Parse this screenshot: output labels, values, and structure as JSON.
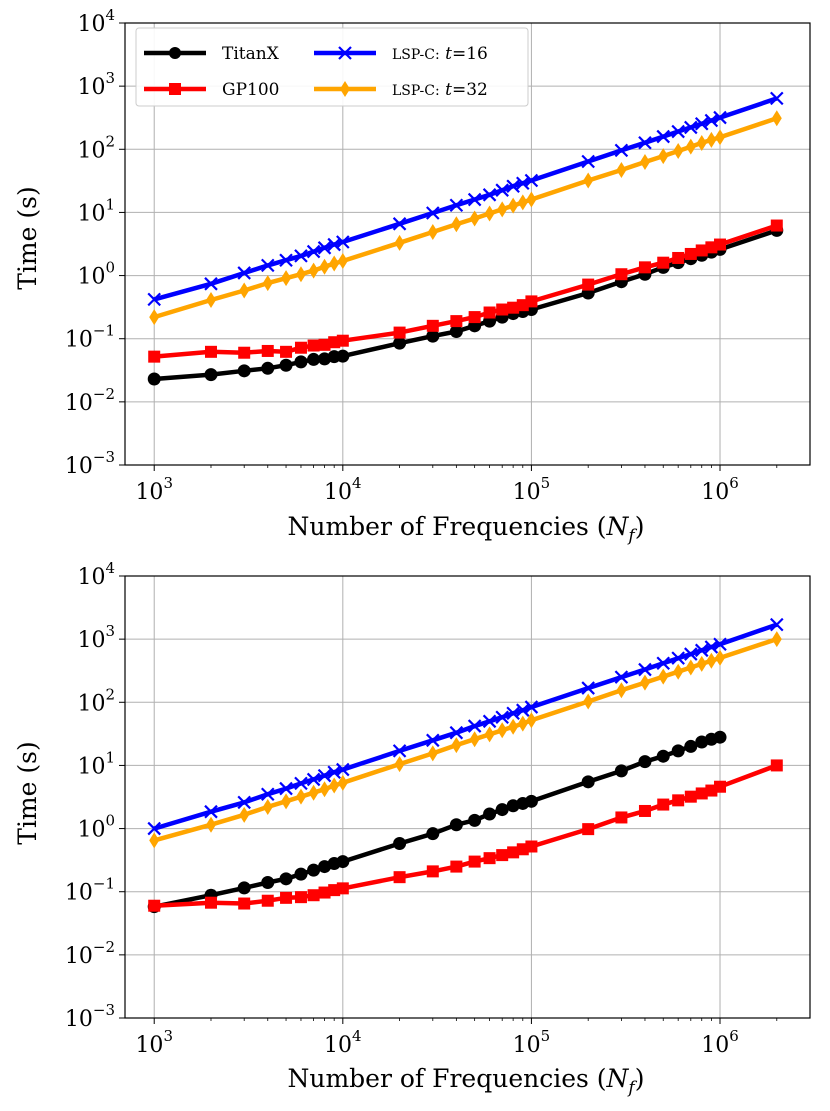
{
  "chart_data": [
    {
      "type": "line",
      "xscale": "log",
      "yscale": "log",
      "xlabel": "Number of Frequencies (N_f)",
      "ylabel": "Time (s)",
      "xlim": [
        700,
        3000000
      ],
      "ylim": [
        0.001,
        10000
      ],
      "grid": true,
      "legend_location": "upper-left",
      "x_ticks": [
        {
          "base": "10",
          "exp": "3",
          "value": 1000
        },
        {
          "base": "10",
          "exp": "4",
          "value": 10000
        },
        {
          "base": "10",
          "exp": "5",
          "value": 100000
        },
        {
          "base": "10",
          "exp": "6",
          "value": 1000000
        }
      ],
      "y_ticks": [
        {
          "base": "10",
          "exp": "−3",
          "value": 0.001
        },
        {
          "base": "10",
          "exp": "−2",
          "value": 0.01
        },
        {
          "base": "10",
          "exp": "−1",
          "value": 0.1
        },
        {
          "base": "10",
          "exp": "0",
          "value": 1
        },
        {
          "base": "10",
          "exp": "1",
          "value": 10
        },
        {
          "base": "10",
          "exp": "2",
          "value": 100
        },
        {
          "base": "10",
          "exp": "3",
          "value": 1000
        },
        {
          "base": "10",
          "exp": "4",
          "value": 10000
        }
      ],
      "series": [
        {
          "name": "TitanX",
          "color": "#000000",
          "marker": "circle",
          "x": [
            1000,
            2000,
            3000,
            4000,
            5000,
            6000,
            7000,
            8000,
            9000,
            10000,
            20000,
            30000,
            40000,
            50000,
            60000,
            70000,
            80000,
            90000,
            100000,
            200000,
            300000,
            400000,
            500000,
            600000,
            700000,
            800000,
            900000,
            1000000,
            2000000
          ],
          "y": [
            0.023,
            0.027,
            0.031,
            0.034,
            0.038,
            0.043,
            0.047,
            0.048,
            0.052,
            0.053,
            0.085,
            0.11,
            0.13,
            0.16,
            0.19,
            0.22,
            0.25,
            0.27,
            0.29,
            0.53,
            0.8,
            1.05,
            1.35,
            1.6,
            1.85,
            2.1,
            2.35,
            2.6,
            5.2
          ]
        },
        {
          "name": "GP100",
          "color": "#ff0000",
          "marker": "square",
          "x": [
            1000,
            2000,
            3000,
            4000,
            5000,
            6000,
            7000,
            8000,
            9000,
            10000,
            20000,
            30000,
            40000,
            50000,
            60000,
            70000,
            80000,
            90000,
            100000,
            200000,
            300000,
            400000,
            500000,
            600000,
            700000,
            800000,
            900000,
            1000000,
            2000000
          ],
          "y": [
            0.052,
            0.062,
            0.06,
            0.064,
            0.062,
            0.072,
            0.078,
            0.08,
            0.088,
            0.093,
            0.125,
            0.16,
            0.19,
            0.22,
            0.26,
            0.29,
            0.31,
            0.34,
            0.39,
            0.72,
            1.05,
            1.35,
            1.6,
            1.9,
            2.2,
            2.5,
            2.8,
            3.1,
            6.2
          ]
        },
        {
          "name": "lsp-c: t=16",
          "label_prefix": "LSP-C:",
          "label_var": "t",
          "label_value": "=16",
          "color": "#0000ff",
          "marker": "x",
          "x": [
            1000,
            2000,
            3000,
            4000,
            5000,
            6000,
            7000,
            8000,
            9000,
            10000,
            20000,
            30000,
            40000,
            50000,
            60000,
            70000,
            80000,
            90000,
            100000,
            200000,
            300000,
            400000,
            500000,
            600000,
            700000,
            800000,
            900000,
            1000000,
            2000000
          ],
          "y": [
            0.42,
            0.74,
            1.1,
            1.45,
            1.75,
            2.05,
            2.4,
            2.75,
            3.1,
            3.4,
            6.6,
            9.8,
            13,
            16,
            19,
            22.5,
            26,
            29,
            32,
            64,
            96,
            127,
            159,
            191,
            222,
            254,
            286,
            318,
            640
          ]
        },
        {
          "name": "lsp-c: t=32",
          "label_prefix": "LSP-C:",
          "label_var": "t",
          "label_value": "=32",
          "color": "#ffa500",
          "marker": "diamond",
          "x": [
            1000,
            2000,
            3000,
            4000,
            5000,
            6000,
            7000,
            8000,
            9000,
            10000,
            20000,
            30000,
            40000,
            50000,
            60000,
            70000,
            80000,
            90000,
            100000,
            200000,
            300000,
            400000,
            500000,
            600000,
            700000,
            800000,
            900000,
            1000000,
            2000000
          ],
          "y": [
            0.22,
            0.41,
            0.58,
            0.76,
            0.91,
            1.05,
            1.2,
            1.38,
            1.55,
            1.7,
            3.3,
            4.9,
            6.5,
            8,
            9.6,
            11.2,
            12.8,
            14.4,
            16,
            32,
            47,
            63,
            78,
            94,
            110,
            126,
            141,
            155,
            310
          ]
        }
      ]
    },
    {
      "type": "line",
      "xscale": "log",
      "yscale": "log",
      "xlabel": "Number of Frequencies (N_f)",
      "ylabel": "Time (s)",
      "xlim": [
        700,
        3000000
      ],
      "ylim": [
        0.001,
        10000
      ],
      "grid": true,
      "x_ticks": [
        {
          "base": "10",
          "exp": "3",
          "value": 1000
        },
        {
          "base": "10",
          "exp": "4",
          "value": 10000
        },
        {
          "base": "10",
          "exp": "5",
          "value": 100000
        },
        {
          "base": "10",
          "exp": "6",
          "value": 1000000
        }
      ],
      "y_ticks": [
        {
          "base": "10",
          "exp": "−3",
          "value": 0.001
        },
        {
          "base": "10",
          "exp": "−2",
          "value": 0.01
        },
        {
          "base": "10",
          "exp": "−1",
          "value": 0.1
        },
        {
          "base": "10",
          "exp": "0",
          "value": 1
        },
        {
          "base": "10",
          "exp": "1",
          "value": 10
        },
        {
          "base": "10",
          "exp": "2",
          "value": 100
        },
        {
          "base": "10",
          "exp": "3",
          "value": 1000
        },
        {
          "base": "10",
          "exp": "4",
          "value": 10000
        }
      ],
      "series": [
        {
          "name": "TitanX",
          "color": "#000000",
          "marker": "circle",
          "x": [
            1000,
            2000,
            3000,
            4000,
            5000,
            6000,
            7000,
            8000,
            9000,
            10000,
            20000,
            30000,
            40000,
            50000,
            60000,
            70000,
            80000,
            90000,
            100000,
            200000,
            300000,
            400000,
            500000,
            600000,
            700000,
            800000,
            900000,
            1000000
          ],
          "y": [
            0.058,
            0.088,
            0.115,
            0.14,
            0.16,
            0.19,
            0.22,
            0.25,
            0.28,
            0.3,
            0.58,
            0.83,
            1.15,
            1.35,
            1.7,
            2.0,
            2.3,
            2.5,
            2.7,
            5.5,
            8.2,
            11.5,
            14,
            17,
            20,
            23.5,
            26,
            28
          ]
        },
        {
          "name": "GP100",
          "color": "#ff0000",
          "marker": "square",
          "x": [
            1000,
            2000,
            3000,
            4000,
            5000,
            6000,
            7000,
            8000,
            9000,
            10000,
            20000,
            30000,
            40000,
            50000,
            60000,
            70000,
            80000,
            90000,
            100000,
            200000,
            300000,
            400000,
            500000,
            600000,
            700000,
            800000,
            900000,
            1000000,
            2000000
          ],
          "y": [
            0.06,
            0.067,
            0.065,
            0.072,
            0.08,
            0.082,
            0.088,
            0.097,
            0.106,
            0.113,
            0.17,
            0.21,
            0.25,
            0.3,
            0.34,
            0.38,
            0.42,
            0.47,
            0.52,
            0.98,
            1.5,
            1.9,
            2.4,
            2.8,
            3.2,
            3.6,
            4.0,
            4.6,
            10
          ]
        },
        {
          "name": "lsp-c: t=16",
          "color": "#0000ff",
          "marker": "x",
          "x": [
            1000,
            2000,
            3000,
            4000,
            5000,
            6000,
            7000,
            8000,
            9000,
            10000,
            20000,
            30000,
            40000,
            50000,
            60000,
            70000,
            80000,
            90000,
            100000,
            200000,
            300000,
            400000,
            500000,
            600000,
            700000,
            800000,
            900000,
            1000000,
            2000000
          ],
          "y": [
            1.0,
            1.85,
            2.6,
            3.5,
            4.3,
            5.2,
            6.0,
            6.9,
            7.8,
            8.6,
            17,
            25,
            33,
            42,
            50,
            58,
            67,
            75,
            84,
            168,
            250,
            330,
            415,
            500,
            580,
            665,
            750,
            830,
            1700
          ]
        },
        {
          "name": "lsp-c: t=32",
          "color": "#ffa500",
          "marker": "diamond",
          "x": [
            1000,
            2000,
            3000,
            4000,
            5000,
            6000,
            7000,
            8000,
            9000,
            10000,
            20000,
            30000,
            40000,
            50000,
            60000,
            70000,
            80000,
            90000,
            100000,
            200000,
            300000,
            400000,
            500000,
            600000,
            700000,
            800000,
            900000,
            1000000,
            2000000
          ],
          "y": [
            0.65,
            1.15,
            1.65,
            2.2,
            2.7,
            3.2,
            3.7,
            4.2,
            4.8,
            5.3,
            10.5,
            15.5,
            21,
            26,
            31,
            36,
            41,
            46,
            52,
            103,
            155,
            205,
            255,
            305,
            355,
            405,
            455,
            505,
            1000
          ]
        }
      ]
    }
  ],
  "labels": {
    "ylabel": "Time (s)",
    "xlabel_main": "Number of Frequencies (",
    "xlabel_var": "N",
    "xlabel_sub": "f",
    "xlabel_close": ")"
  }
}
